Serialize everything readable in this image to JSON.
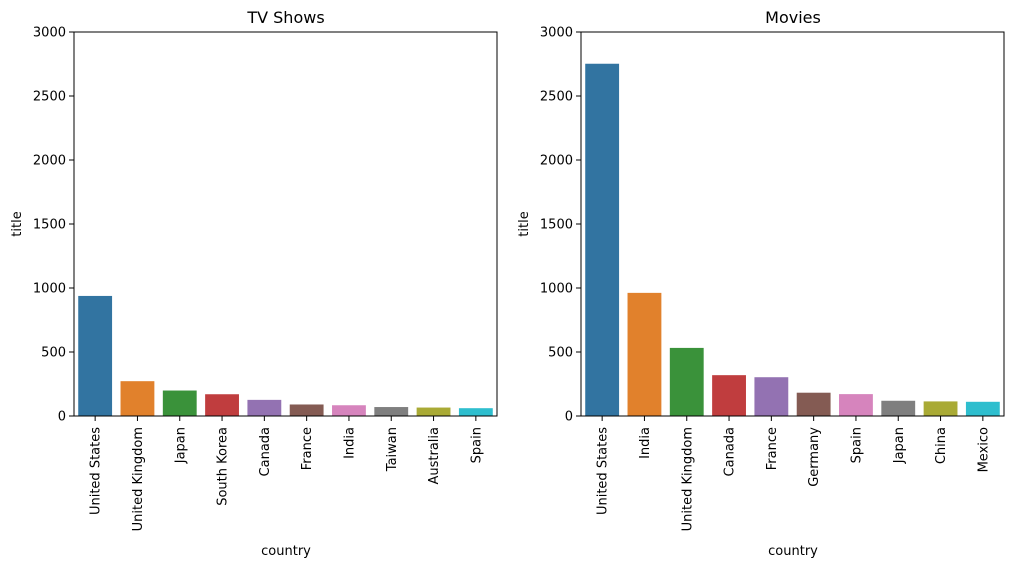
{
  "chart_data": [
    {
      "type": "bar",
      "title": "TV Shows",
      "xlabel": "country",
      "ylabel": "title",
      "ylim": [
        0,
        3000
      ],
      "yticks": [
        "0",
        "500",
        "1000",
        "1500",
        "2000",
        "2500",
        "3000"
      ],
      "grid": false,
      "categories": [
        "United States",
        "United Kingdom",
        "Japan",
        "South Korea",
        "Canada",
        "France",
        "India",
        "Taiwan",
        "Australia",
        "Spain"
      ],
      "values": [
        938,
        272,
        199,
        170,
        126,
        90,
        84,
        70,
        66,
        61
      ],
      "colors": [
        "#3274a1",
        "#e1812c",
        "#3a923a",
        "#c03d3e",
        "#9372b2",
        "#845b53",
        "#d684bd",
        "#7f7f7f",
        "#a9aa35",
        "#2ebece"
      ]
    },
    {
      "type": "bar",
      "title": "Movies",
      "xlabel": "country",
      "ylabel": "title",
      "ylim": [
        0,
        3000
      ],
      "yticks": [
        "0",
        "500",
        "1000",
        "1500",
        "2000",
        "2500",
        "3000"
      ],
      "grid": false,
      "categories": [
        "United States",
        "India",
        "United Kingdom",
        "Canada",
        "France",
        "Germany",
        "Spain",
        "Japan",
        "China",
        "Mexico"
      ],
      "values": [
        2752,
        962,
        532,
        319,
        303,
        182,
        171,
        119,
        114,
        111
      ],
      "colors": [
        "#3274a1",
        "#e1812c",
        "#3a923a",
        "#c03d3e",
        "#9372b2",
        "#845b53",
        "#d684bd",
        "#7f7f7f",
        "#a9aa35",
        "#2ebece"
      ]
    }
  ]
}
